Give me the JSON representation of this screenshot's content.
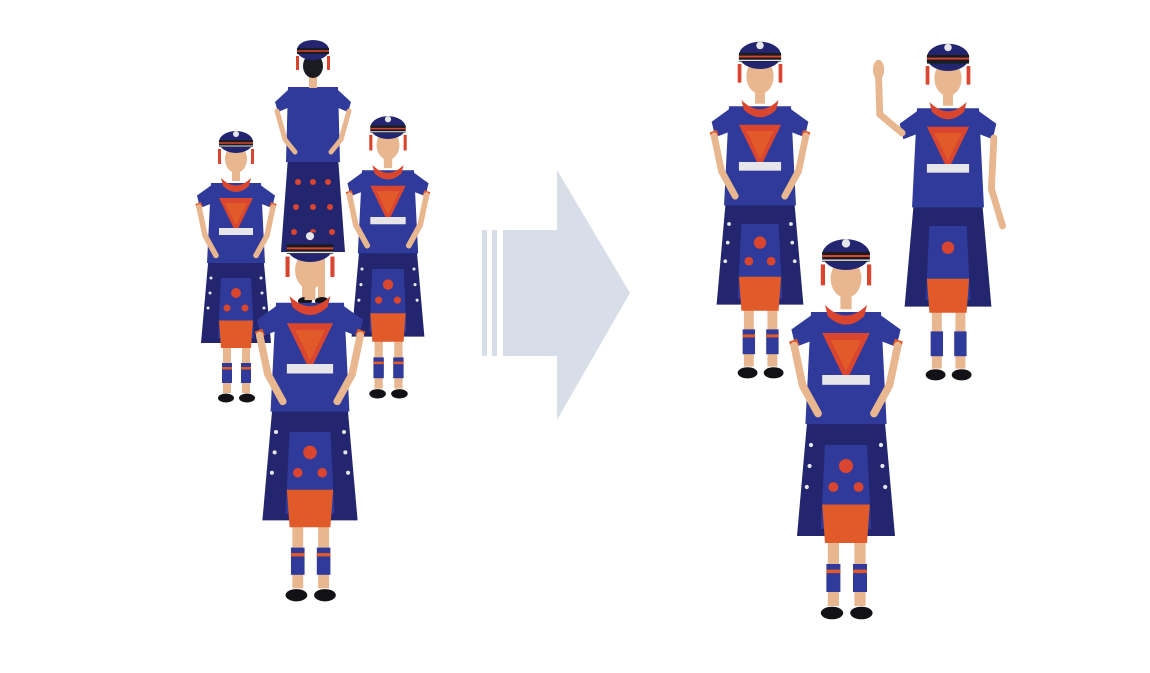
{
  "scene": {
    "background": "#ffffff",
    "left_group": {
      "label": "",
      "figures": [
        {
          "pose": "back-view"
        },
        {
          "pose": "left-profile"
        },
        {
          "pose": "right-profile"
        },
        {
          "pose": "front-hands-on-hips"
        }
      ]
    },
    "right_group": {
      "label": "",
      "figures": [
        {
          "pose": "front-hands-on-hips"
        },
        {
          "pose": "waving"
        },
        {
          "pose": "front-hands-on-hips"
        }
      ]
    },
    "arrow": {
      "color": "#d8dee8",
      "direction": "right"
    },
    "colors": {
      "costume_navy": "#23266e",
      "costume_blue": "#2f3a9a",
      "accent_orange": "#e05a2a",
      "accent_red": "#d9452f",
      "silver": "#e6e6ea",
      "skin": "#e8b790",
      "hair": "#1b1b22",
      "shoe": "#121216"
    }
  }
}
